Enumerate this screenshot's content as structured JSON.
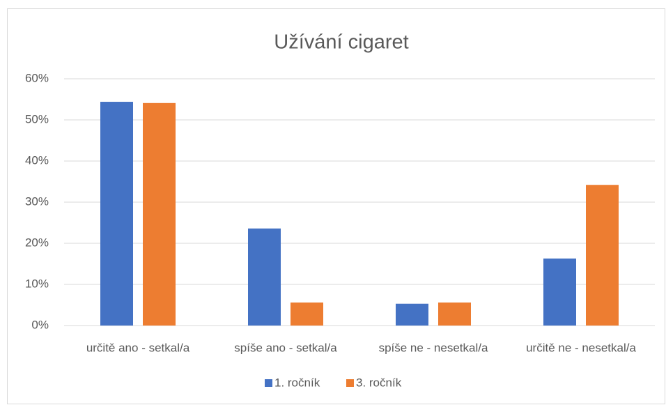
{
  "chart_data": {
    "type": "bar",
    "title": "Užívání cigaret",
    "categories": [
      "určitě ano - setkal/a",
      "spíše ano - setkal/a",
      "spíše ne - nesetkal/a",
      "určitě ne - nesetkal/a"
    ],
    "series": [
      {
        "name": "1. ročník",
        "color": "#4472c4",
        "values": [
          54.4,
          23.6,
          5.3,
          16.3
        ]
      },
      {
        "name": "3. ročník",
        "color": "#ed7d31",
        "values": [
          54.1,
          5.6,
          5.6,
          34.2
        ]
      }
    ],
    "ylim": [
      0,
      60
    ],
    "yticks": [
      {
        "value": 0,
        "label": "0%"
      },
      {
        "value": 10,
        "label": "10%"
      },
      {
        "value": 20,
        "label": "20%"
      },
      {
        "value": 30,
        "label": "30%"
      },
      {
        "value": 40,
        "label": "40%"
      },
      {
        "value": 50,
        "label": "50%"
      },
      {
        "value": 60,
        "label": "60%"
      }
    ],
    "grid": true,
    "legend": "bottom"
  }
}
